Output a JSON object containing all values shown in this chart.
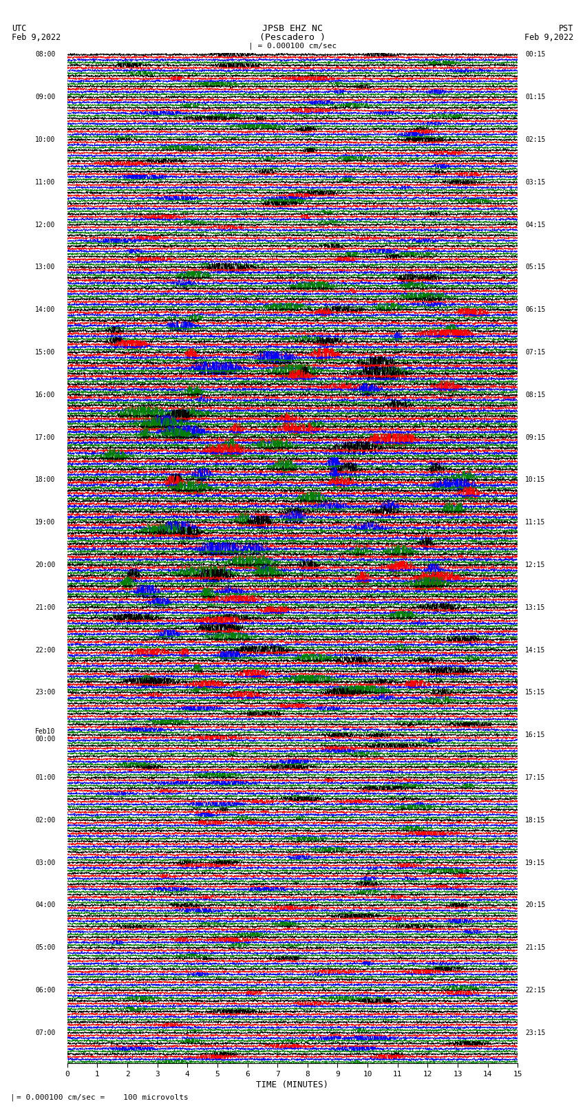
{
  "title_line1": "JPSB EHZ NC",
  "title_line2": "(Pescadero )",
  "title_scale": "| = 0.000100 cm/sec",
  "utc_label": "UTC",
  "utc_date": "Feb 9,2022",
  "pst_label": "PST",
  "pst_date": "Feb 9,2022",
  "bottom_note": "= 0.000100 cm/sec =    100 microvolts",
  "bottom_left": "| ",
  "xlabel": "TIME (MINUTES)",
  "fig_width": 8.5,
  "fig_height": 16.13,
  "colors": [
    "black",
    "red",
    "blue",
    "green"
  ],
  "x_min": 0,
  "x_max": 15,
  "x_ticks": [
    0,
    1,
    2,
    3,
    4,
    5,
    6,
    7,
    8,
    9,
    10,
    11,
    12,
    13,
    14,
    15
  ],
  "utc_times": [
    "08:00",
    "",
    "",
    "",
    "09:00",
    "",
    "",
    "",
    "10:00",
    "",
    "",
    "",
    "11:00",
    "",
    "",
    "",
    "12:00",
    "",
    "",
    "",
    "13:00",
    "",
    "",
    "",
    "14:00",
    "",
    "",
    "",
    "15:00",
    "",
    "",
    "",
    "16:00",
    "",
    "",
    "",
    "17:00",
    "",
    "",
    "",
    "18:00",
    "",
    "",
    "",
    "19:00",
    "",
    "",
    "",
    "20:00",
    "",
    "",
    "",
    "21:00",
    "",
    "",
    "",
    "22:00",
    "",
    "",
    "",
    "23:00",
    "",
    "",
    "",
    "Feb10\n00:00",
    "",
    "",
    "",
    "01:00",
    "",
    "",
    "",
    "02:00",
    "",
    "",
    "",
    "03:00",
    "",
    "",
    "",
    "04:00",
    "",
    "",
    "",
    "05:00",
    "",
    "",
    "",
    "06:00",
    "",
    "",
    "",
    "07:00",
    "",
    ""
  ],
  "pst_times": [
    "00:15",
    "",
    "",
    "",
    "01:15",
    "",
    "",
    "",
    "02:15",
    "",
    "",
    "",
    "03:15",
    "",
    "",
    "",
    "04:15",
    "",
    "",
    "",
    "05:15",
    "",
    "",
    "",
    "06:15",
    "",
    "",
    "",
    "07:15",
    "",
    "",
    "",
    "08:15",
    "",
    "",
    "",
    "09:15",
    "",
    "",
    "",
    "10:15",
    "",
    "",
    "",
    "11:15",
    "",
    "",
    "",
    "12:15",
    "",
    "",
    "",
    "13:15",
    "",
    "",
    "",
    "14:15",
    "",
    "",
    "",
    "15:15",
    "",
    "",
    "",
    "16:15",
    "",
    "",
    "",
    "17:15",
    "",
    "",
    "",
    "18:15",
    "",
    "",
    "",
    "19:15",
    "",
    "",
    "",
    "20:15",
    "",
    "",
    "",
    "21:15",
    "",
    "",
    "",
    "22:15",
    "",
    "",
    "",
    "23:15",
    "",
    ""
  ],
  "background_color": "white",
  "grid_color": "#888888",
  "minute_grid_positions": [
    1,
    2,
    3,
    4,
    5,
    6,
    7,
    8,
    9,
    10,
    11,
    12,
    13,
    14
  ]
}
